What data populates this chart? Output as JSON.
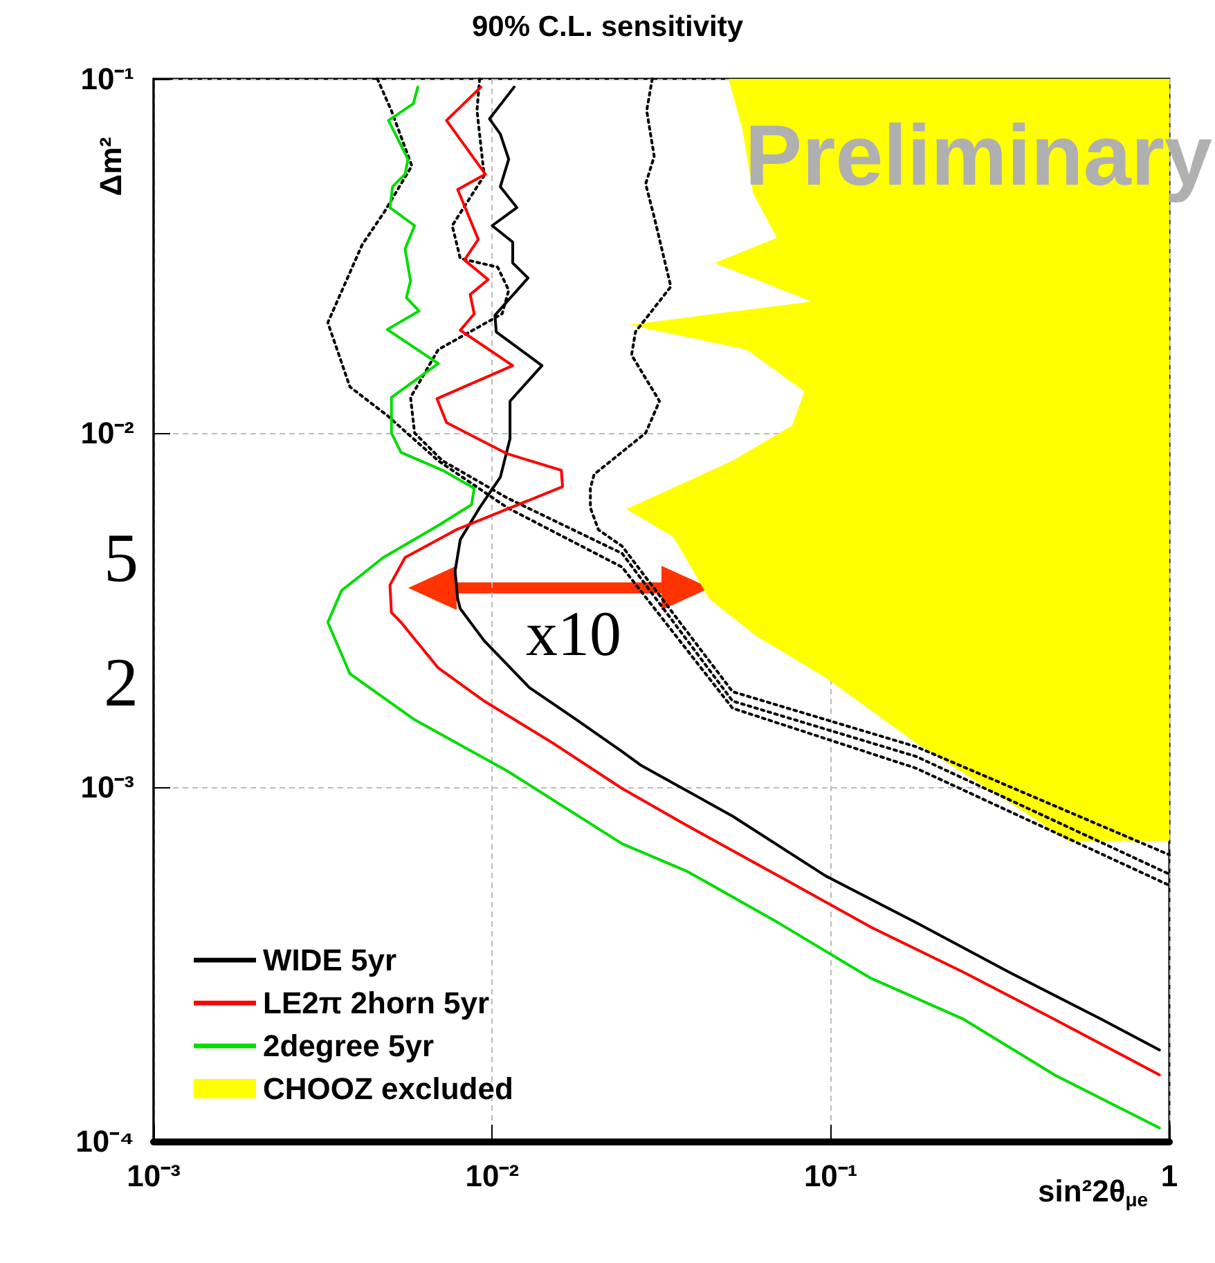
{
  "chart_data": {
    "type": "line",
    "title": "90% C.L. sensitivity",
    "xlabel": "sin²2θ$_{μe}$",
    "ylabel": "Δm²",
    "log": "xy",
    "grid": true,
    "legend": "bottom left",
    "marker": "none",
    "xlim": [
      0.001,
      1
    ],
    "ylim": [
      0.0001,
      0.1
    ],
    "xticks": [
      {
        "value": 0.001,
        "label": "10⁻³"
      },
      {
        "value": 0.01,
        "label": "10⁻²"
      },
      {
        "value": 0.1,
        "label": "10⁻¹"
      },
      1
    ],
    "yticks": [
      {
        "value": 0.0001,
        "label": "10⁻⁴"
      },
      {
        "value": 0.001,
        "label": "10⁻³"
      },
      {
        "value": 0.01,
        "label": "10⁻²"
      },
      {
        "value": 0.1,
        "label": "10⁻¹"
      }
    ],
    "annotations": [
      "Preliminary",
      "x10",
      "5",
      "2"
    ],
    "series": [
      {
        "name": "CHOOZ excluded",
        "type": "area",
        "color": "#ffff00",
        "x": [
          0.0499,
          0.0548,
          0.059,
          0.0693,
          0.0454,
          0.0877,
          0.0254,
          0.0564,
          0.0836,
          0.0769,
          0.0513,
          0.0249,
          0.0343,
          0.0438,
          0.0603,
          0.0964,
          0.179,
          0.337,
          0.504,
          1,
          1
        ],
        "values": [
          0.1,
          0.0723,
          0.0474,
          0.0356,
          0.0302,
          0.0235,
          0.0202,
          0.0172,
          0.0131,
          0.0105,
          0.00835,
          0.0061,
          0.00509,
          0.0034,
          0.00267,
          0.00204,
          0.00133,
          0.000906,
          0.000705,
          0.000705,
          0.1
        ]
      },
      {
        "type": "line",
        "color": "#000000",
        "line_style": "dotted",
        "x": [
          0.00458,
          0.00504,
          0.00579,
          0.00481,
          0.00413,
          0.00327,
          0.0038,
          0.0049,
          0.00693,
          0.01109,
          0.0242,
          0.0513,
          0.179,
          1
        ],
        "values": [
          0.1,
          0.0813,
          0.0568,
          0.0422,
          0.034,
          0.0205,
          0.0135,
          0.0112,
          0.00835,
          0.00615,
          0.00418,
          0.00167,
          0.00113,
          0.000528
        ]
      },
      {
        "type": "line",
        "color": "#000000",
        "line_style": "dotted",
        "x": [
          0.00918,
          0.00902,
          0.00947,
          0.00762,
          0.00805,
          0.01038,
          0.01119,
          0.0107,
          0.00693,
          0.00574,
          0.0059,
          0.00713,
          0.01109,
          0.0242,
          0.0513,
          0.179,
          1
        ],
        "values": [
          0.1,
          0.0813,
          0.0533,
          0.0385,
          0.0311,
          0.0294,
          0.0253,
          0.0217,
          0.0172,
          0.0126,
          0.01,
          0.00835,
          0.00655,
          0.00457,
          0.00175,
          0.00122,
          0.000568
        ]
      },
      {
        "type": "line",
        "color": "#000000",
        "line_style": "dotted",
        "x": [
          0.0297,
          0.0286,
          0.0301,
          0.0284,
          0.0301,
          0.0337,
          0.0265,
          0.0258,
          0.0312,
          0.0284,
          0.02,
          0.0195,
          0.0195,
          0.0206,
          0.0242,
          0.0513,
          0.179,
          1
        ],
        "values": [
          0.1,
          0.0813,
          0.0604,
          0.0505,
          0.0407,
          0.0259,
          0.0193,
          0.0166,
          0.0123,
          0.01,
          0.00764,
          0.00698,
          0.00615,
          0.00533,
          0.00479,
          0.00186,
          0.0013,
          0.000644
        ]
      },
      {
        "name": "WIDE 5yr",
        "color": "#000000",
        "line_style": "solid",
        "x": [
          0.01161,
          0.00982,
          0.01057,
          0.01119,
          0.01057,
          0.01183,
          0.01,
          0.0115,
          0.0115,
          0.01276,
          0.01019,
          0.01028,
          0.01403,
          0.01129,
          0.01129,
          0.01057,
          0.00918,
          0.00805,
          0.00777,
          0.00791,
          0.00805,
          0.00947,
          0.01288,
          0.01775,
          0.0242,
          0.0274,
          0.0513,
          0.0964,
          0.179,
          0.337,
          0.631,
          0.935
        ],
        "values": [
          0.0948,
          0.0771,
          0.0698,
          0.0593,
          0.0496,
          0.0433,
          0.0385,
          0.0346,
          0.0302,
          0.0274,
          0.0215,
          0.0193,
          0.0155,
          0.0123,
          0.00964,
          0.0075,
          0.00615,
          0.005,
          0.00407,
          0.0034,
          0.00319,
          0.00259,
          0.00191,
          0.00155,
          0.00126,
          0.001155,
          0.000828,
          0.000562,
          0.000414,
          0.0003,
          0.000221,
          0.000181
        ]
      },
      {
        "name": "LE2π 2horn 5yr",
        "color": "#ff0000",
        "line_style": "solid",
        "x": [
          0.00926,
          0.00733,
          0.00955,
          0.00791,
          0.0091,
          0.00828,
          0.00973,
          0.00861,
          0.00885,
          0.00805,
          0.0115,
          0.00687,
          0.00733,
          0.01109,
          0.016,
          0.01614,
          0.01109,
          0.00783,
          0.00553,
          0.00499,
          0.00504,
          0.00538,
          0.00693,
          0.00947,
          0.01514,
          0.0242,
          0.0377,
          0.07,
          0.131,
          0.247,
          0.458,
          0.935
        ],
        "values": [
          0.0948,
          0.0763,
          0.0538,
          0.0487,
          0.0352,
          0.0308,
          0.0271,
          0.0246,
          0.0217,
          0.0195,
          0.0155,
          0.0125,
          0.0107,
          0.00873,
          0.00785,
          0.00705,
          0.0061,
          0.00533,
          0.00445,
          0.00372,
          0.00311,
          0.00292,
          0.00217,
          0.00175,
          0.00133,
          0.000991,
          0.000778,
          0.000562,
          0.000403,
          0.0003,
          0.000221,
          0.000154
        ]
      },
      {
        "name": "2degree 5yr",
        "color": "#00dd00",
        "line_style": "solid",
        "x": [
          0.00603,
          0.00585,
          0.00494,
          0.00564,
          0.00553,
          0.00508,
          0.00499,
          0.0059,
          0.00553,
          0.00574,
          0.00558,
          0.00608,
          0.0049,
          0.00693,
          0.00504,
          0.00504,
          0.00538,
          0.00713,
          0.00885,
          0.00869,
          0.00693,
          0.00477,
          0.00359,
          0.00327,
          0.0038,
          0.0059,
          0.01109,
          0.0242,
          0.0377,
          0.07,
          0.131,
          0.247,
          0.458,
          0.935
        ],
        "values": [
          0.0948,
          0.0851,
          0.0763,
          0.0593,
          0.0538,
          0.0496,
          0.0433,
          0.0385,
          0.0331,
          0.0269,
          0.0241,
          0.0221,
          0.0196,
          0.0157,
          0.0126,
          0.01,
          0.00881,
          0.00785,
          0.00698,
          0.00627,
          0.00548,
          0.00445,
          0.00359,
          0.00292,
          0.00209,
          0.00155,
          0.00111,
          0.000692,
          0.000578,
          0.000414,
          0.000289,
          0.000221,
          0.000154,
          0.000109
        ]
      }
    ]
  }
}
